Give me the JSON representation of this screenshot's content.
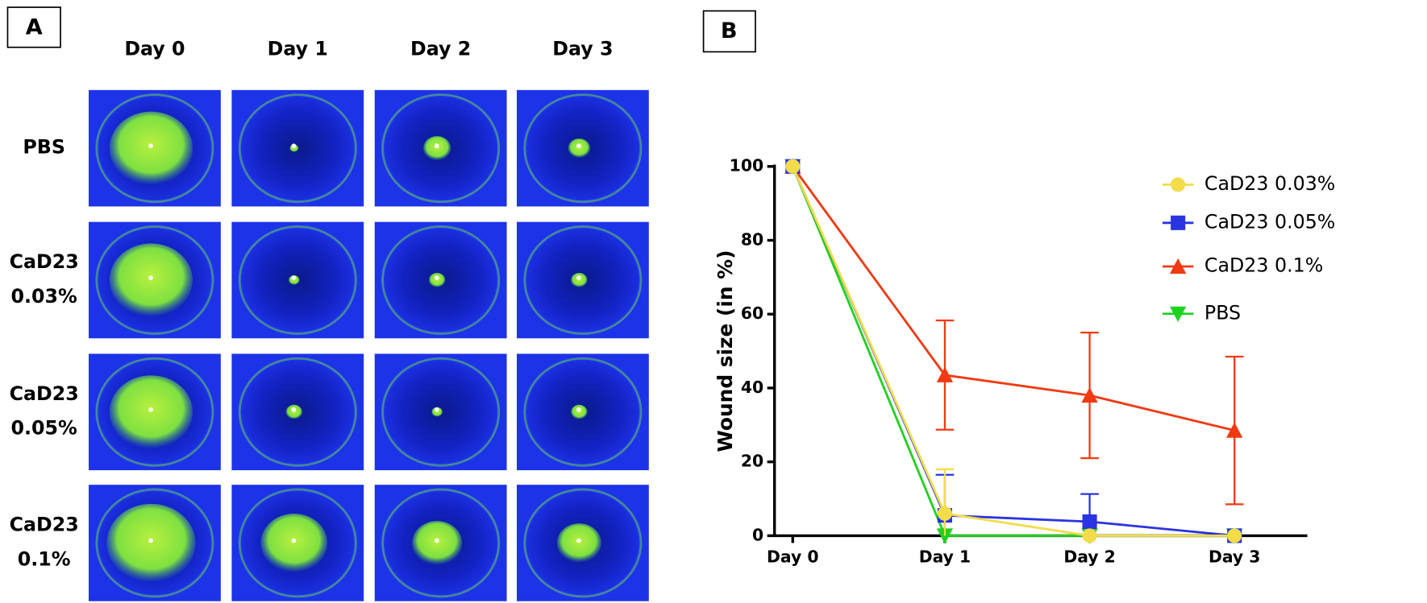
{
  "panel_a": {
    "label": "A",
    "columns": [
      "Day 0",
      "Day 1",
      "Day 2",
      "Day 3"
    ],
    "rows": [
      [
        "PBS"
      ],
      [
        "CaD23",
        "0.03%"
      ],
      [
        "CaD23",
        "0.05%"
      ],
      [
        "CaD23",
        "0.1%"
      ]
    ]
  },
  "chart_data": {
    "type": "line",
    "panel_label": "B",
    "y_label": "Wound size (in %)",
    "categories": [
      "Day 0",
      "Day 1",
      "Day 2",
      "Day 3"
    ],
    "ylim": [
      0,
      100
    ],
    "yticks": [
      0,
      20,
      40,
      60,
      80,
      100
    ],
    "legend": "right",
    "series": [
      {
        "name": "CaD23 0.03%",
        "color": "#f2dc4a",
        "marker": "circle",
        "values": [
          100,
          6,
          0,
          0
        ],
        "errors": [
          0,
          12,
          0,
          0
        ]
      },
      {
        "name": "CaD23 0.05%",
        "color": "#2a34e0",
        "marker": "square",
        "values": [
          100,
          5.5,
          3.8,
          0
        ],
        "errors": [
          0,
          11,
          7.5,
          0
        ]
      },
      {
        "name": "CaD23 0.1%",
        "color": "#f03a12",
        "marker": "triangle-up",
        "values": [
          100,
          43.5,
          38,
          28.5
        ],
        "errors": [
          0,
          14.8,
          17,
          20
        ]
      },
      {
        "name": "PBS",
        "color": "#1fd21f",
        "marker": "triangle-down",
        "values": [
          100,
          0,
          0,
          0
        ],
        "errors": [
          0,
          0,
          0,
          0
        ]
      }
    ]
  }
}
